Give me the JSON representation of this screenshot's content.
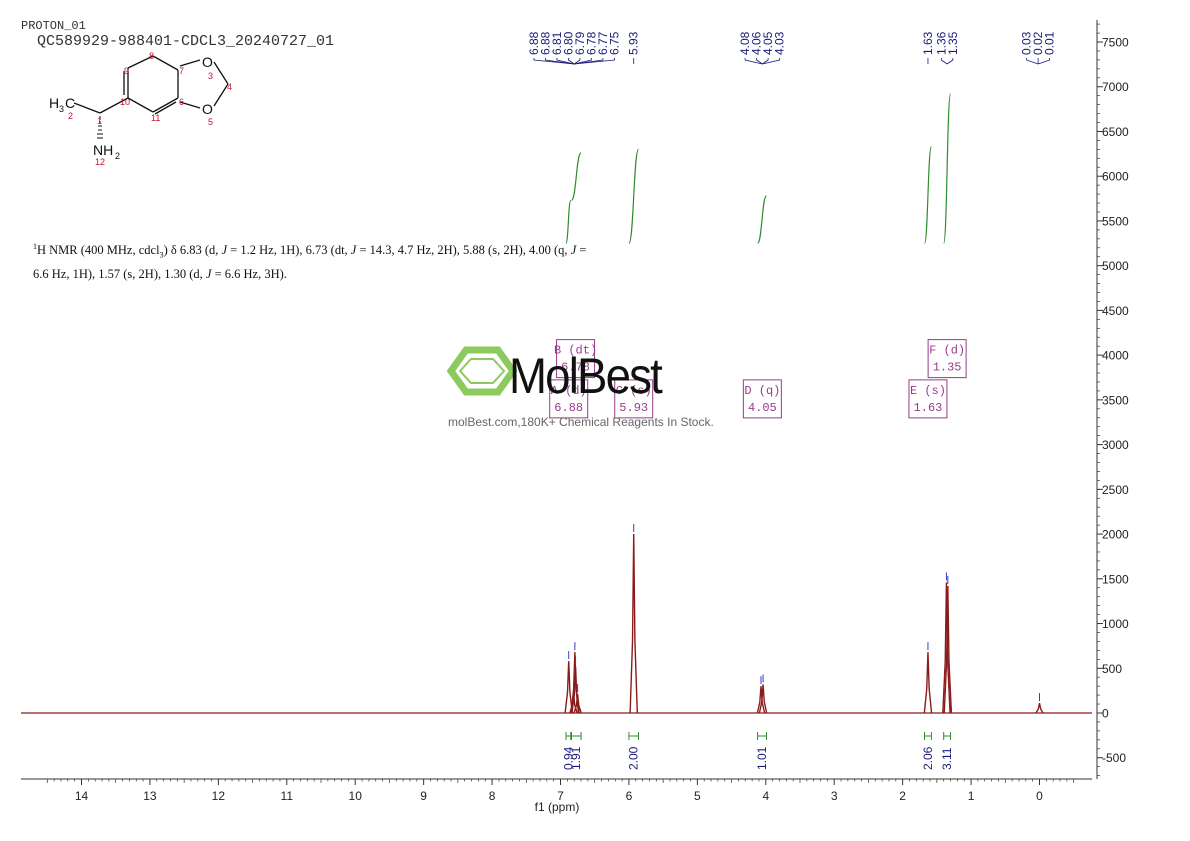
{
  "header": {
    "line1": "PROTON_01",
    "line2": "QC589929-988401-CDCL3_20240727_01"
  },
  "summary": {
    "sup": "1",
    "parts": [
      "H NMR (400 MHz, cdcl",
      "3",
      ") δ 6.83 (d, ",
      "J",
      " = 1.2 Hz, 1H), 6.73 (dt, ",
      "J",
      " = 14.3, 4.7 Hz, 2H), 5.88 (s, 2H), 4.00 (q, ",
      "J",
      " = 6.6 Hz, 1H), 1.57 (s, 2H), 1.30 (d, ",
      "J",
      " = 6.6 Hz, 3H)."
    ]
  },
  "structure": {
    "atoms": [
      "O",
      "O",
      "H",
      "3",
      "C",
      "NH",
      "2"
    ],
    "numbers": [
      "9",
      "8",
      "7",
      "3",
      "4",
      "10",
      "6",
      "1",
      "2",
      "11",
      "5",
      "12"
    ]
  },
  "watermark": {
    "logo_text": "MolBest",
    "tagline": "molBest.com,180K+ Chemical Reagents In Stock."
  },
  "colors": {
    "spectrum": "#8b1a1a",
    "integral": "#2e8b2e",
    "peak_label": "#1a1a7a",
    "multiplet": "#9a3c8c",
    "axis": "#333333"
  },
  "chart_data": {
    "type": "line",
    "xlabel": "f1 (ppm)",
    "ylabel": "",
    "xlim": [
      14.8,
      -0.8
    ],
    "ylim": [
      -750,
      7750
    ],
    "x_ticks": [
      "14",
      "13",
      "12",
      "11",
      "10",
      "9",
      "8",
      "7",
      "6",
      "5",
      "4",
      "3",
      "2",
      "1",
      "0"
    ],
    "x_tick_values": [
      14,
      13,
      12,
      11,
      10,
      9,
      8,
      7,
      6,
      5,
      4,
      3,
      2,
      1,
      0
    ],
    "y_ticks": [
      "-500",
      "0",
      "500",
      "1000",
      "1500",
      "2000",
      "2500",
      "3000",
      "3500",
      "4000",
      "4500",
      "5000",
      "5500",
      "6000",
      "6500",
      "7000",
      "7500"
    ],
    "y_tick_values": [
      -500,
      0,
      500,
      1000,
      1500,
      2000,
      2500,
      3000,
      3500,
      4000,
      4500,
      5000,
      5500,
      6000,
      6500,
      7000,
      7500
    ],
    "peaks": [
      {
        "ppm": 6.88,
        "height": 580
      },
      {
        "ppm": 6.81,
        "height": 230
      },
      {
        "ppm": 6.79,
        "height": 680
      },
      {
        "ppm": 6.78,
        "height": 520
      },
      {
        "ppm": 6.75,
        "height": 210
      },
      {
        "ppm": 5.93,
        "height": 2000
      },
      {
        "ppm": 4.07,
        "height": 300
      },
      {
        "ppm": 4.04,
        "height": 320
      },
      {
        "ppm": 1.63,
        "height": 680
      },
      {
        "ppm": 1.36,
        "height": 1460
      },
      {
        "ppm": 1.34,
        "height": 1420
      },
      {
        "ppm": 0.0,
        "height": 110
      }
    ],
    "peak_labels": [
      {
        "group": [
          "6.88",
          "6.88",
          "6.81",
          "6.80",
          "6.79",
          "6.78",
          "6.77",
          "6.75"
        ],
        "target_ppm": 6.8
      },
      {
        "group": [
          "5.93"
        ],
        "target_ppm": 5.93
      },
      {
        "group": [
          "4.08",
          "4.06",
          "4.05",
          "4.03"
        ],
        "target_ppm": 4.05
      },
      {
        "group": [
          "1.63"
        ],
        "target_ppm": 1.63
      },
      {
        "group": [
          "1.36",
          "1.35"
        ],
        "target_ppm": 1.35
      },
      {
        "group": [
          "0.03",
          "0.02",
          "0.01"
        ],
        "target_ppm": 0.02
      }
    ],
    "integrals": [
      {
        "label": "0.94",
        "from": 6.92,
        "to": 6.85,
        "y0": 5250,
        "y1": 5730
      },
      {
        "label": "1.91",
        "from": 6.84,
        "to": 6.7,
        "y0": 5730,
        "y1": 6260
      },
      {
        "label": "2.00",
        "from": 6.0,
        "to": 5.86,
        "y0": 5250,
        "y1": 6300
      },
      {
        "label": "1.01",
        "from": 4.12,
        "to": 3.99,
        "y0": 5250,
        "y1": 5780
      },
      {
        "label": "2.06",
        "from": 1.68,
        "to": 1.58,
        "y0": 5250,
        "y1": 6330
      },
      {
        "label": "3.11",
        "from": 1.4,
        "to": 1.3,
        "y0": 5250,
        "y1": 6920
      }
    ],
    "multiplets": [
      {
        "name": "B (dt)",
        "value": "6.78",
        "ppm": 6.78,
        "y": 3950
      },
      {
        "name": "A (d)",
        "value": "6.88",
        "ppm": 6.88,
        "y": 3500
      },
      {
        "name": "C (s)",
        "value": "5.93",
        "ppm": 5.93,
        "y": 3500
      },
      {
        "name": "D (q)",
        "value": "4.05",
        "ppm": 4.05,
        "y": 3500
      },
      {
        "name": "E (s)",
        "value": "1.63",
        "ppm": 1.63,
        "y": 3500
      },
      {
        "name": "F (d)",
        "value": "1.35",
        "ppm": 1.35,
        "y": 3950
      }
    ]
  }
}
